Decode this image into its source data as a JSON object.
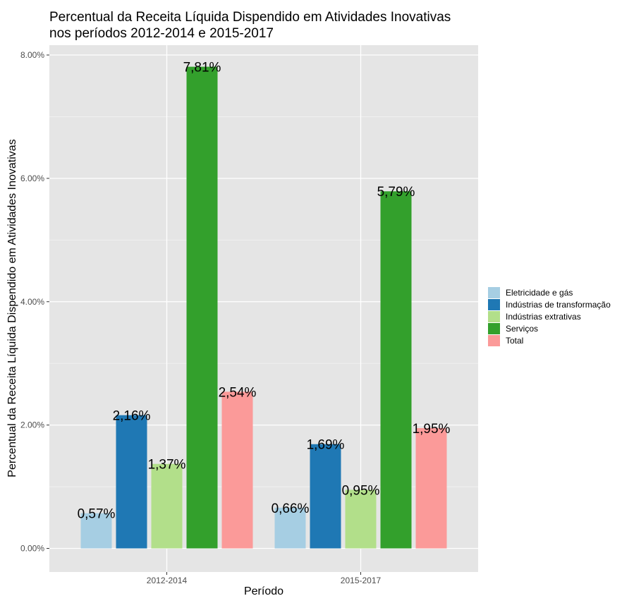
{
  "chart_data": {
    "type": "bar",
    "title": "Percentual da Receita Líquida Dispendido em Atividades Inovativas nos períodos 2012-2014 e 2015-2017",
    "title_lines": [
      "Percentual da Receita Líquida Dispendido em Atividades Inovativas",
      "nos períodos 2012-2014 e 2015-2017"
    ],
    "xlabel": "Período",
    "ylabel": "Percentual da Receita Líquida Dispendido em Atividades Inovativas",
    "categories": [
      "2012-2014",
      "2015-2017"
    ],
    "ylim": [
      0,
      0.08
    ],
    "y_ticks": [
      0,
      0.02,
      0.04,
      0.06,
      0.08
    ],
    "y_tick_labels": [
      "0.00%",
      "2.00%",
      "4.00%",
      "6.00%",
      "8.00%"
    ],
    "grid": true,
    "legend_position": "right",
    "series": [
      {
        "name": "Eletricidade e gás",
        "color": "#a6cee3",
        "values": [
          0.0057,
          0.0066
        ],
        "labels": [
          "0,57%",
          "0,66%"
        ]
      },
      {
        "name": "Indústrias de transformação",
        "color": "#1f78b4",
        "values": [
          0.0216,
          0.0169
        ],
        "labels": [
          "2,16%",
          "1,69%"
        ]
      },
      {
        "name": "Indústrias extrativas",
        "color": "#b2df8a",
        "values": [
          0.0137,
          0.0095
        ],
        "labels": [
          "1,37%",
          "0,95%"
        ]
      },
      {
        "name": "Serviços",
        "color": "#33a02c",
        "values": [
          0.0781,
          0.0579
        ],
        "labels": [
          "7,81%",
          "5,79%"
        ]
      },
      {
        "name": "Total",
        "color": "#fb9a99",
        "values": [
          0.0254,
          0.0195
        ],
        "labels": [
          "2,54%",
          "1,95%"
        ]
      }
    ]
  },
  "colors": {
    "panel_background": "#e5e5e5",
    "grid_major": "#ffffff",
    "grid_minor": "#f0f0f0",
    "tick_text": "#4d4d4d"
  }
}
